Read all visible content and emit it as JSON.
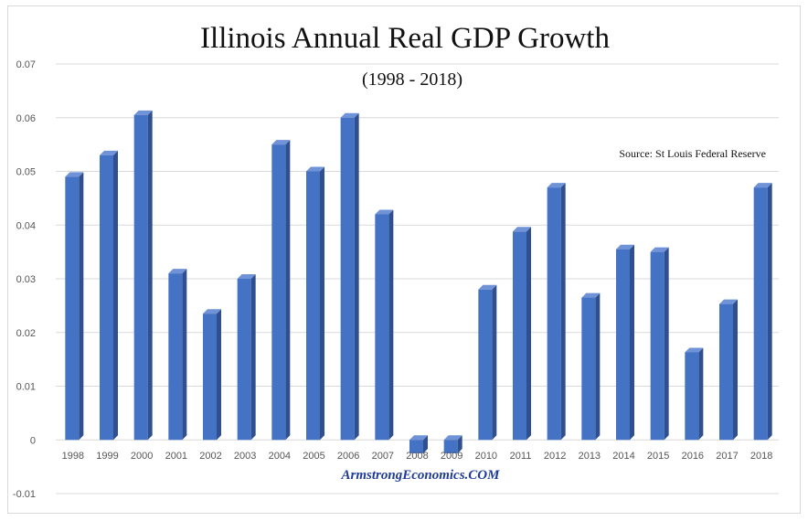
{
  "chart_data": {
    "type": "bar",
    "title": "Illinois Annual Real GDP Growth",
    "subtitle": "(1998 - 2018)",
    "source": "Source: St Louis Federal Reserve",
    "watermark": "ArmstrongEconomics.COM",
    "xlabel": "",
    "ylabel": "",
    "categories": [
      "1998",
      "1999",
      "2000",
      "2001",
      "2002",
      "2003",
      "2004",
      "2005",
      "2006",
      "2007",
      "2008",
      "2009",
      "2010",
      "2011",
      "2012",
      "2013",
      "2014",
      "2015",
      "2016",
      "2017",
      "2018"
    ],
    "values": [
      0.049,
      0.053,
      0.0605,
      0.031,
      0.0235,
      0.03,
      0.055,
      0.05,
      0.06,
      0.042,
      -0.0025,
      -0.0025,
      0.028,
      0.0388,
      0.047,
      0.0265,
      0.0355,
      0.035,
      0.0163,
      0.0253,
      0.047
    ],
    "ylim": [
      -0.01,
      0.07
    ],
    "yticks": [
      "-0.01",
      "0",
      "0.01",
      "0.02",
      "0.03",
      "0.04",
      "0.05",
      "0.06",
      "0.07"
    ],
    "grid": true,
    "legend": "none",
    "colors": {
      "bar_front": "#4472c4",
      "bar_side": "#2f4f8f",
      "bar_top": "#6f93d6",
      "grid": "#d9d9d9",
      "watermark": "#1f3b9a"
    }
  }
}
